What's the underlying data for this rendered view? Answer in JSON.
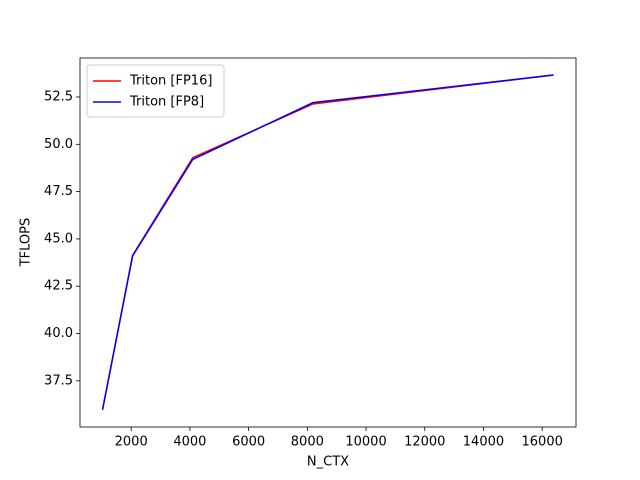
{
  "chart_data": {
    "type": "line",
    "x_label": "N_CTX",
    "y_label": "TFLOPS",
    "x": [
      1024,
      2048,
      4096,
      8192,
      16384
    ],
    "series": [
      {
        "name": "Triton [FP16]",
        "color": "#ff0000",
        "values": [
          35.97,
          44.13,
          49.29,
          52.13,
          53.66
        ]
      },
      {
        "name": "Triton [FP8]",
        "color": "#0000ff",
        "values": [
          35.97,
          44.1,
          49.2,
          52.2,
          53.66
        ]
      }
    ],
    "xlim": [
      256,
      17152
    ],
    "xticks": [
      2000,
      4000,
      6000,
      8000,
      10000,
      12000,
      14000,
      16000
    ],
    "ylim": [
      35.06,
      54.56
    ],
    "yticks": [
      37.5,
      {
        "value": 40,
        "label": "40.0"
      },
      42.5,
      {
        "value": 45,
        "label": "45.0"
      },
      47.5,
      {
        "value": 50,
        "label": "50.0"
      },
      52.5
    ],
    "legend": "upper left",
    "grid": false
  }
}
